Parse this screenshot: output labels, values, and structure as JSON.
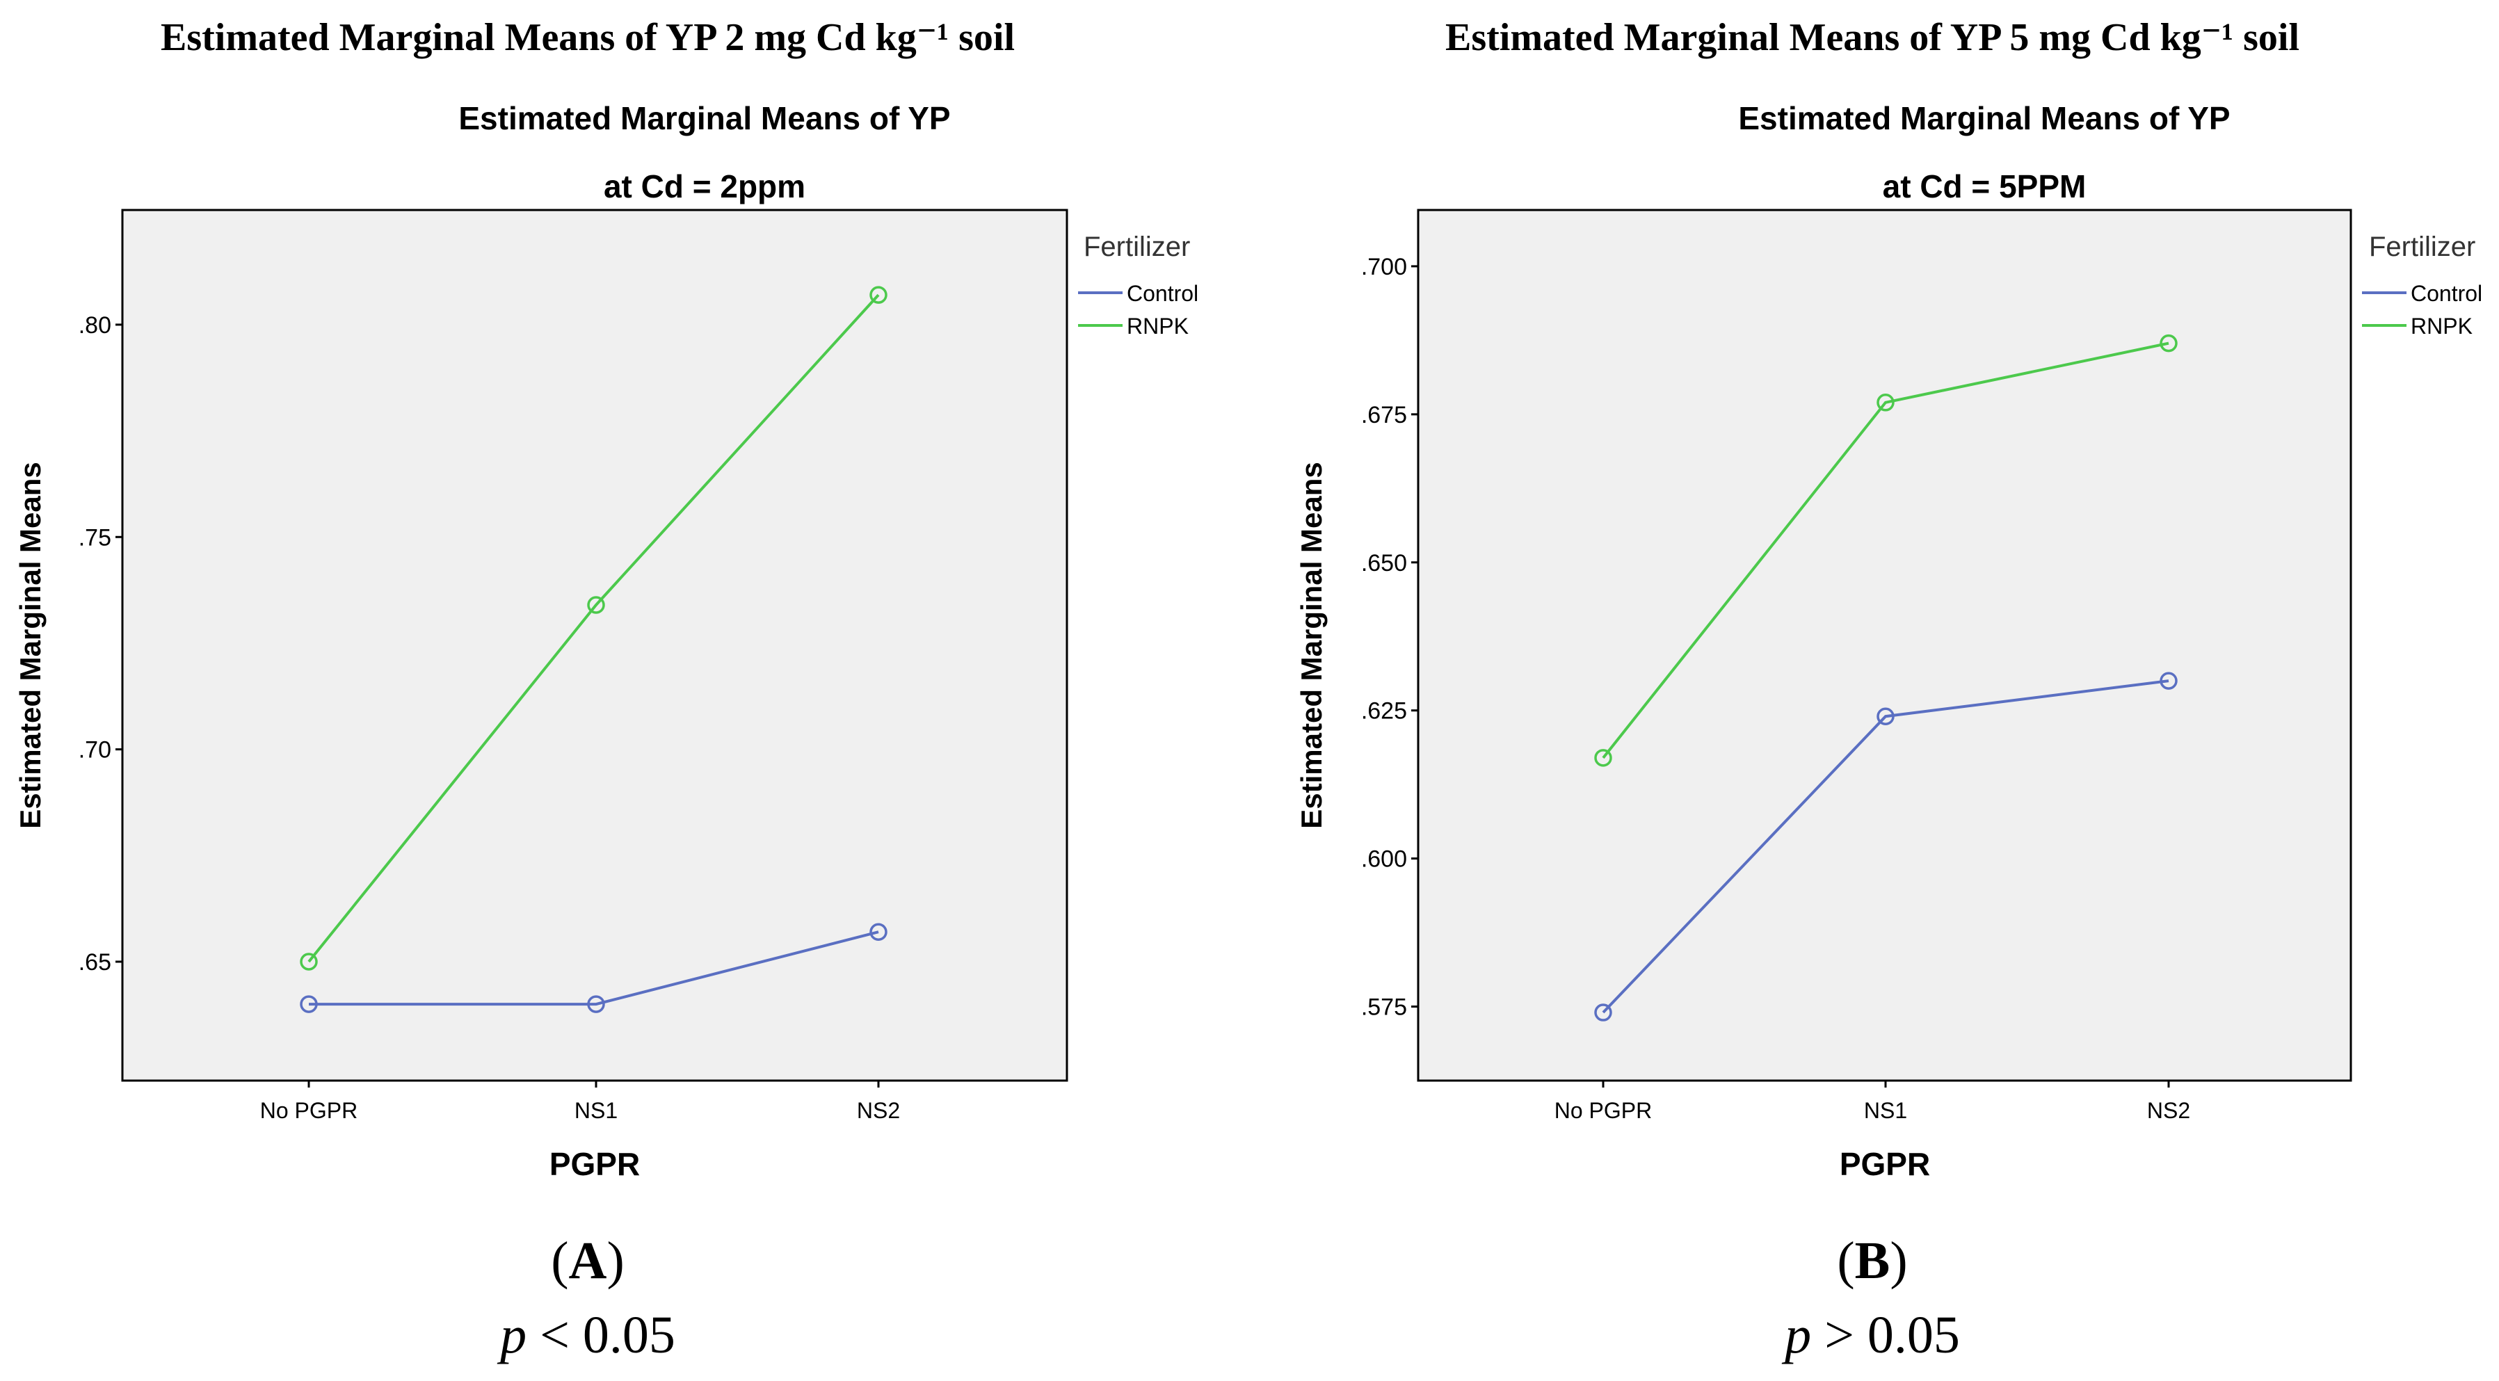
{
  "colors": {
    "control": "#5A6FC2",
    "rnpk": "#4CC94C",
    "plot_bg": "#F0F0F0"
  },
  "chart_data": [
    {
      "type": "line",
      "header": "Estimated Marginal Means of YP 2 mg Cd kg⁻¹ soil",
      "title": "Estimated Marginal Means of YP",
      "subtitle": "at Cd = 2ppm",
      "xlabel": "PGPR",
      "ylabel": "Estimated Marginal Means",
      "categories": [
        "No PGPR",
        "NS1",
        "NS2"
      ],
      "ylim": [
        0.622,
        0.827
      ],
      "yticks": [
        0.65,
        0.7,
        0.75,
        0.8
      ],
      "ytick_labels": [
        ".65",
        ".70",
        ".75",
        ".80"
      ],
      "legend_title": "Fertilizer",
      "series": [
        {
          "name": "Control",
          "values": [
            0.64,
            0.64,
            0.657
          ]
        },
        {
          "name": "RNPK",
          "values": [
            0.65,
            0.734,
            0.807
          ]
        }
      ],
      "panel_label": "A",
      "p_label": "p",
      "p_value": "< 0.05"
    },
    {
      "type": "line",
      "header": "Estimated Marginal Means of YP 5 mg Cd kg⁻¹ soil",
      "title": "Estimated Marginal Means of YP",
      "subtitle": "at Cd = 5PPM",
      "xlabel": "PGPR",
      "ylabel": "Estimated Marginal Means",
      "categories": [
        "No PGPR",
        "NS1",
        "NS2"
      ],
      "ylim": [
        0.5625,
        0.7095
      ],
      "yticks": [
        0.575,
        0.6,
        0.625,
        0.65,
        0.675,
        0.7
      ],
      "ytick_labels": [
        ".575",
        ".600",
        ".625",
        ".650",
        ".675",
        ".700"
      ],
      "legend_title": "Fertilizer",
      "series": [
        {
          "name": "Control",
          "values": [
            0.574,
            0.624,
            0.63
          ]
        },
        {
          "name": "RNPK",
          "values": [
            0.617,
            0.677,
            0.687
          ]
        }
      ],
      "panel_label": "B",
      "p_label": "p",
      "p_value": "> 0.05"
    }
  ]
}
